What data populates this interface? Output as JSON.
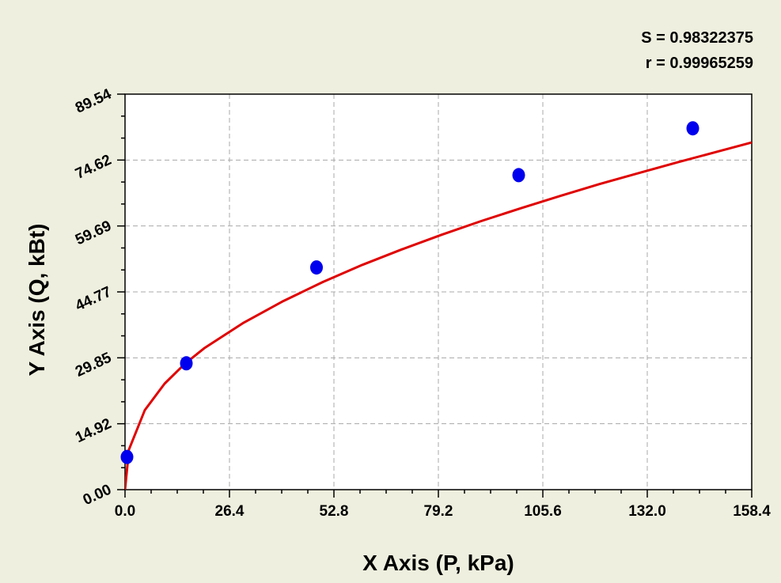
{
  "stats": {
    "s_text": "S = 0.98322375",
    "r_text": "r = 0.99965259"
  },
  "colors": {
    "background": "#efefdf",
    "plot_bg": "#ffffff",
    "fit_line": "#e00000",
    "points": "#0000ee",
    "grid": "#a8a8a8"
  },
  "chart_data": {
    "type": "scatter",
    "xlabel": "X Axis (P, kPa)",
    "ylabel": "Y Axis (Q, kBt)",
    "xlim": [
      0,
      158.4
    ],
    "ylim": [
      0,
      89.54
    ],
    "x_ticks": [
      "0.0",
      "26.4",
      "52.8",
      "79.2",
      "105.6",
      "132.0",
      "158.4"
    ],
    "y_ticks": [
      "0.00",
      "14.92",
      "29.85",
      "44.77",
      "59.69",
      "74.62",
      "89.54"
    ],
    "grid": true,
    "series": [
      {
        "kind": "points",
        "x": [
          0.5,
          15.5,
          48.4,
          99.5,
          143.5
        ],
        "y": [
          7.4,
          28.6,
          50.3,
          71.2,
          81.8
        ]
      },
      {
        "kind": "fit_curve",
        "x": [
          0,
          1,
          5,
          10,
          15,
          20,
          30,
          40,
          50,
          60,
          70,
          80,
          90,
          100,
          110,
          120,
          130,
          140,
          150,
          158.4
        ],
        "y": [
          0,
          9.1,
          18.0,
          24.0,
          28.4,
          32.0,
          37.8,
          42.7,
          47.0,
          50.9,
          54.4,
          57.7,
          60.8,
          63.7,
          66.5,
          69.2,
          71.7,
          74.2,
          76.6,
          78.6
        ]
      }
    ]
  }
}
